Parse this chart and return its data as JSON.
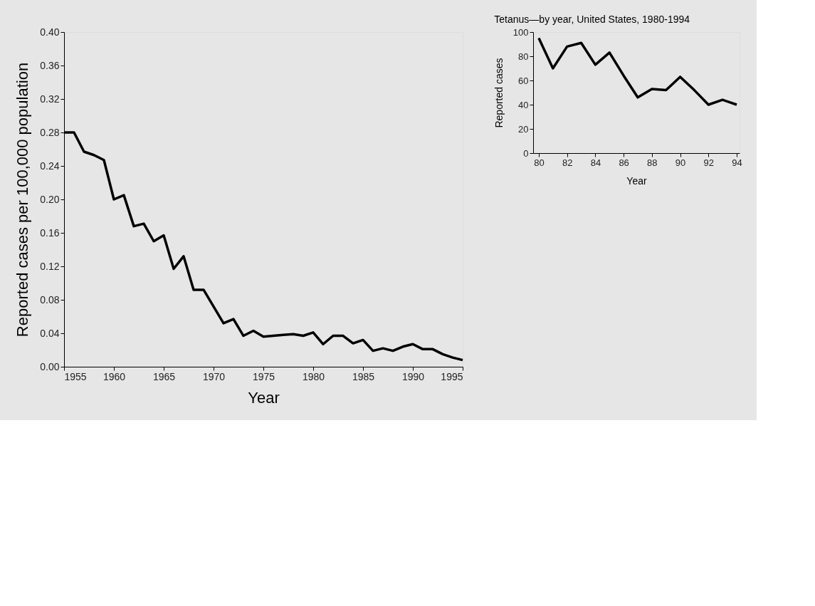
{
  "chart_data": [
    {
      "type": "line",
      "xlabel": "Year",
      "ylabel": "Reported cases per 100,000 population",
      "x": [
        1955,
        1956,
        1957,
        1958,
        1959,
        1960,
        1961,
        1962,
        1963,
        1964,
        1965,
        1966,
        1967,
        1968,
        1969,
        1970,
        1971,
        1972,
        1973,
        1974,
        1975,
        1976,
        1977,
        1978,
        1979,
        1980,
        1981,
        1982,
        1983,
        1984,
        1985,
        1986,
        1987,
        1988,
        1989,
        1990,
        1991,
        1992,
        1993,
        1994,
        1995
      ],
      "series": [
        {
          "color": "#000000",
          "values": [
            0.28,
            0.28,
            0.257,
            0.253,
            0.247,
            0.2,
            0.205,
            0.168,
            0.171,
            0.15,
            0.157,
            0.117,
            0.132,
            0.092,
            0.092,
            0.072,
            0.052,
            0.057,
            0.037,
            0.043,
            0.036,
            0.037,
            0.038,
            0.039,
            0.037,
            0.041,
            0.027,
            0.037,
            0.037,
            0.028,
            0.032,
            0.019,
            0.022,
            0.019,
            0.024,
            0.027,
            0.021,
            0.021,
            0.015,
            0.011,
            0.008
          ]
        }
      ],
      "xlim": [
        1955,
        1995
      ],
      "xticks": [
        1955,
        1960,
        1965,
        1970,
        1975,
        1980,
        1985,
        1990,
        1995
      ],
      "ylim": [
        0,
        0.4
      ],
      "yticks": [
        {
          "value": 0,
          "label": "0.00"
        },
        {
          "value": 0.04,
          "label": "0.04"
        },
        {
          "value": 0.08,
          "label": "0.08"
        },
        {
          "value": 0.12,
          "label": "0.12"
        },
        {
          "value": 0.16,
          "label": "0.16"
        },
        {
          "value": 0.2,
          "label": "0.20"
        },
        {
          "value": 0.24,
          "label": "0.24"
        },
        {
          "value": 0.28,
          "label": "0.28"
        },
        {
          "value": 0.32,
          "label": "0.32"
        },
        {
          "value": 0.36,
          "label": "0.36"
        },
        {
          "value": 0.4,
          "label": "0.40"
        }
      ],
      "grid": false,
      "marker": "none",
      "line_style": "solid"
    },
    {
      "type": "line",
      "title": "Tetanus—by year, United States, 1980-1994",
      "xlabel": "Year",
      "ylabel": "Reported cases",
      "x": [
        1980,
        1981,
        1982,
        1983,
        1984,
        1985,
        1986,
        1987,
        1988,
        1989,
        1990,
        1991,
        1992,
        1993,
        1994
      ],
      "series": [
        {
          "color": "#000000",
          "values": [
            95,
            70,
            88,
            91,
            73,
            83,
            64,
            46,
            53,
            52,
            63,
            52,
            40,
            44,
            40
          ]
        }
      ],
      "xlim": [
        1979.6,
        1994.2
      ],
      "xticks": [
        {
          "value": 1980,
          "label": "80"
        },
        {
          "value": 1982,
          "label": "82"
        },
        {
          "value": 1984,
          "label": "84"
        },
        {
          "value": 1986,
          "label": "86"
        },
        {
          "value": 1988,
          "label": "88"
        },
        {
          "value": 1990,
          "label": "90"
        },
        {
          "value": 1992,
          "label": "92"
        },
        {
          "value": 1994,
          "label": "94"
        }
      ],
      "ylim": [
        0,
        100
      ],
      "yticks": [
        0,
        20,
        40,
        60,
        80,
        100
      ],
      "grid": false,
      "marker": "none",
      "line_style": "solid"
    }
  ]
}
